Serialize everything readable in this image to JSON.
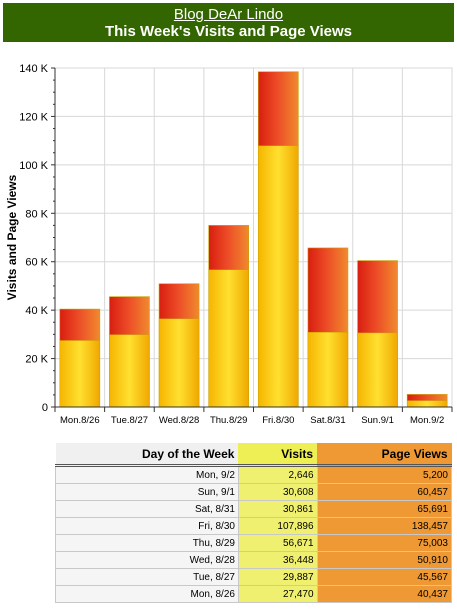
{
  "header": {
    "blog_name": "Blog DeAr Lindo",
    "title": "This Week's Visits and Page Views"
  },
  "chart_data": {
    "type": "bar",
    "stacked": false,
    "categories": [
      "Mon.8/26",
      "Tue.8/27",
      "Wed.8/28",
      "Thu.8/29",
      "Fri.8/30",
      "Sat.8/31",
      "Sun.9/1",
      "Mon.9/2"
    ],
    "series": [
      {
        "name": "Page Views",
        "values": [
          40437,
          45567,
          50910,
          75003,
          138457,
          65691,
          60457,
          5200
        ],
        "color": "#e43c1c"
      },
      {
        "name": "Visits",
        "values": [
          27470,
          29887,
          36448,
          56671,
          107896,
          30861,
          30608,
          2646
        ],
        "color": "#f5c71a"
      }
    ],
    "ylabel": "Visits and Page Views",
    "ylim": [
      0,
      140000
    ],
    "yticks": [
      0,
      20000,
      40000,
      60000,
      80000,
      100000,
      120000,
      140000
    ],
    "ytick_labels": [
      "0",
      "20 K",
      "40 K",
      "60 K",
      "80 K",
      "100 K",
      "120 K",
      "140 K"
    ],
    "grid": true
  },
  "table": {
    "headers": [
      "Day of the Week",
      "Visits",
      "Page Views"
    ],
    "rows": [
      [
        "Mon, 9/2",
        "2,646",
        "5,200"
      ],
      [
        "Sun, 9/1",
        "30,608",
        "60,457"
      ],
      [
        "Sat, 8/31",
        "30,861",
        "65,691"
      ],
      [
        "Fri, 8/30",
        "107,896",
        "138,457"
      ],
      [
        "Thu, 8/29",
        "56,671",
        "75,003"
      ],
      [
        "Wed, 8/28",
        "36,448",
        "50,910"
      ],
      [
        "Tue, 8/27",
        "29,887",
        "45,567"
      ],
      [
        "Mon, 8/26",
        "27,470",
        "40,437"
      ]
    ]
  }
}
